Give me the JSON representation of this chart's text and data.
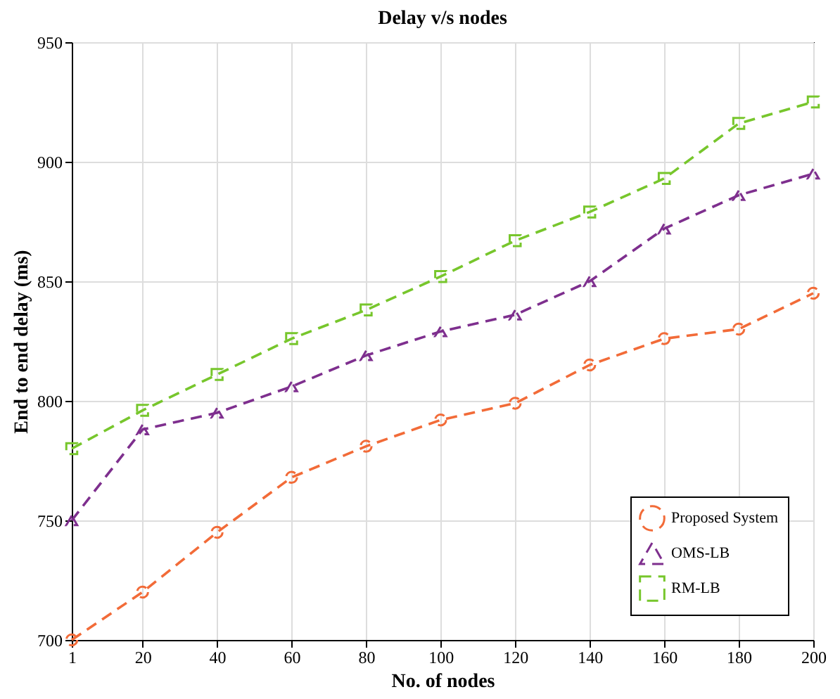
{
  "chart_data": {
    "type": "line",
    "title": "Delay v/s nodes",
    "xlabel": "No. of nodes",
    "ylabel": "End to end delay (ms)",
    "x": [
      1,
      20,
      40,
      60,
      80,
      100,
      120,
      140,
      160,
      180,
      200
    ],
    "xlim": [
      1,
      200
    ],
    "xticks": [
      1,
      20,
      40,
      60,
      80,
      100,
      120,
      140,
      160,
      180,
      200
    ],
    "ylim": [
      700,
      950
    ],
    "yticks": [
      700,
      750,
      800,
      850,
      900,
      950
    ],
    "grid": true,
    "legend": "bottom right",
    "series": [
      {
        "name": "Proposed System",
        "color": "#f26b38",
        "marker": "circle",
        "line_style": "dashed",
        "values": [
          700,
          720,
          745,
          768,
          781,
          792,
          799,
          815,
          826,
          830,
          845
        ]
      },
      {
        "name": "OMS-LB",
        "color": "#7e2f8e",
        "marker": "triangle",
        "line_style": "dashed",
        "values": [
          750,
          788,
          795,
          806,
          819,
          829,
          836,
          850,
          872,
          886,
          895
        ]
      },
      {
        "name": "RM-LB",
        "color": "#77c62c",
        "marker": "square",
        "line_style": "dashed",
        "values": [
          780,
          796,
          811,
          826,
          838,
          852,
          867,
          879,
          893,
          916,
          925
        ]
      }
    ]
  }
}
